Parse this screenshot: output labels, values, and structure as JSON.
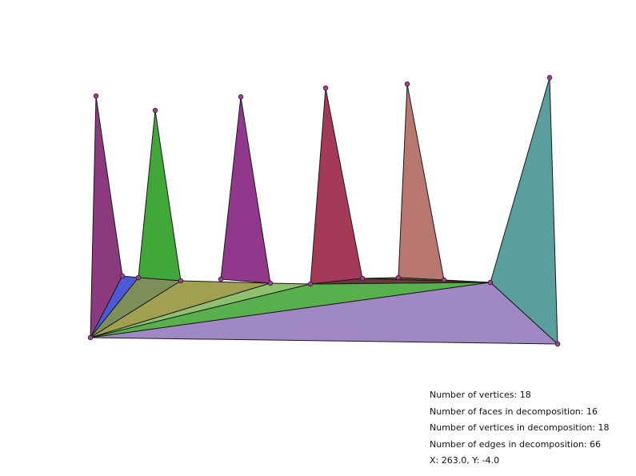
{
  "stats": {
    "num_vertices": "Number of vertices: 18",
    "num_faces": "Number of faces in decomposition: 16",
    "num_decomp_vertices": "Number of vertices in decomposition: 18",
    "num_edges": "Number of edges in decomposition: 66",
    "cursor": "X: 263.0, Y: -4.0"
  },
  "face_colors": [
    "#8b3a7e",
    "#4c5ad8",
    "#40a838",
    "#7c8e5a",
    "#a0a050",
    "#92388c",
    "#8ec070",
    "#58b04c",
    "#a43a58",
    "#6a3a3a",
    "#b87870",
    "#5a5a40",
    "#5a9e9e",
    "#a088c4"
  ],
  "vertex_color": "#b03a9a"
}
